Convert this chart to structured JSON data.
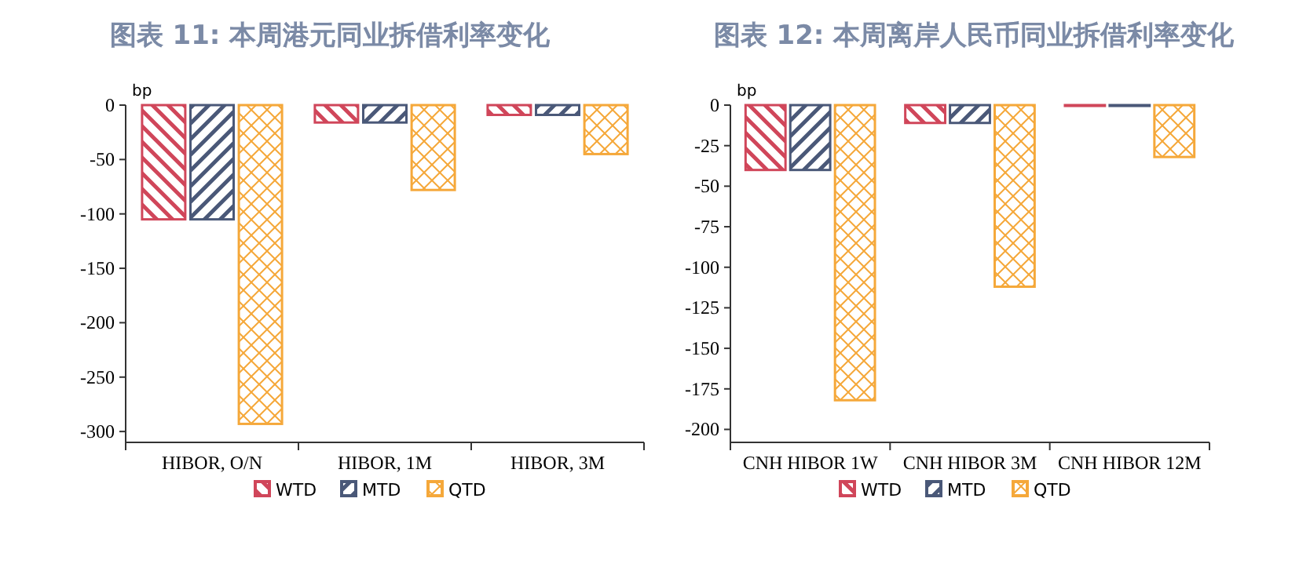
{
  "chart_data": [
    {
      "type": "bar",
      "title": "图表 11: 本周港元同业拆借利率变化",
      "ylabel": "bp",
      "categories": [
        "HIBOR, O/N",
        "HIBOR, 1M",
        "HIBOR, 3M"
      ],
      "series": [
        {
          "name": "WTD",
          "color": "#d0465a",
          "values": [
            -105,
            -16,
            -9
          ]
        },
        {
          "name": "MTD",
          "color": "#4a5878",
          "values": [
            -105,
            -16,
            -9
          ]
        },
        {
          "name": "QTD",
          "color": "#f5a83a",
          "values": [
            -293,
            -78,
            -45
          ]
        }
      ],
      "ylim": [
        -310,
        0
      ],
      "yticks": [
        0,
        -50,
        -100,
        -150,
        -200,
        -250,
        -300
      ],
      "legend": "bottom",
      "grid": false
    },
    {
      "type": "bar",
      "title": "图表 12: 本周离岸人民币同业拆借利率变化",
      "ylabel": "bp",
      "categories": [
        "CNH HIBOR 1W",
        "CNH HIBOR 3M",
        "CNH HIBOR 12M"
      ],
      "series": [
        {
          "name": "WTD",
          "color": "#d0465a",
          "values": [
            -40,
            -11,
            -0.5
          ]
        },
        {
          "name": "MTD",
          "color": "#4a5878",
          "values": [
            -40,
            -11,
            -0.5
          ]
        },
        {
          "name": "QTD",
          "color": "#f5a83a",
          "values": [
            -182,
            -112,
            -32
          ]
        }
      ],
      "ylim": [
        -208,
        0
      ],
      "yticks": [
        0,
        -25,
        -50,
        -75,
        -100,
        -125,
        -150,
        -175,
        -200
      ],
      "legend": "bottom",
      "grid": false
    }
  ]
}
